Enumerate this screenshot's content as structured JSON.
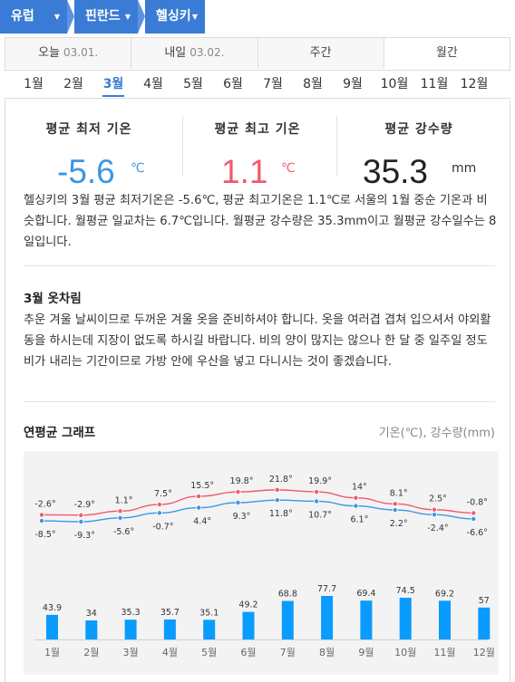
{
  "breadcrumb": [
    {
      "label": "유럽"
    },
    {
      "label": "핀란드"
    },
    {
      "label": "헬싱키"
    }
  ],
  "day_tabs": [
    {
      "label": "오늘",
      "date": "03.01."
    },
    {
      "label": "내일",
      "date": "03.02."
    },
    {
      "label": "주간",
      "date": ""
    },
    {
      "label": "월간",
      "date": ""
    }
  ],
  "months": [
    "1월",
    "2월",
    "3월",
    "4월",
    "5월",
    "6월",
    "7월",
    "8월",
    "9월",
    "10월",
    "11월",
    "12월"
  ],
  "active_month": "3월",
  "summary": {
    "min_label": "평균 최저 기온",
    "min_value": "-5.6",
    "min_unit": "℃",
    "max_label": "평균 최고 기온",
    "max_value": "1.1",
    "max_unit": "℃",
    "rain_label": "평균 강수량",
    "rain_value": "35.3",
    "rain_unit": "mm"
  },
  "description": "헬싱키의 3월 평균 최저기온은 -5.6℃, 평균 최고기온은 1.1℃로 서울의 1월 중순 기온과 비슷합니다. 월평균 일교차는 6.7℃입니다. 월평균 강수량은 35.3mm이고 월평균 강수일수는 8일입니다.",
  "clothing": {
    "title": "3월 옷차림",
    "text": "추운 겨울 날씨이므로 두꺼운 겨울 옷을 준비하셔야 합니다. 옷을 여러겹 겹쳐 입으셔서 야외활동을 하시는데 지장이 없도록 하시길 바랍니다. 비의 양이 많지는 않으나 한 달 중 일주일 정도 비가 내리는 기간이므로 가방 안에 우산을 넣고 다니시는 것이 좋겠습니다."
  },
  "graph": {
    "title": "연평균 그래프",
    "unit_label": "기온(℃), 강수량(mm)"
  },
  "colors": {
    "accent": "#3a7bd5",
    "min_temp": "#3c96e6",
    "max_temp": "#f05a6e",
    "bar": "#0a9bff"
  },
  "chart_data": {
    "type": "line+bar",
    "categories": [
      "1월",
      "2월",
      "3월",
      "4월",
      "5월",
      "6월",
      "7월",
      "8월",
      "9월",
      "10월",
      "11월",
      "12월"
    ],
    "series": [
      {
        "name": "",
        "kind": "line",
        "values": [
          -2.6,
          -2.9,
          1.1,
          7.5,
          15.5,
          19.8,
          21.8,
          19.9,
          14,
          8.1,
          2.5,
          -0.8
        ],
        "labels": [
          "-2.6°",
          "-2.9°",
          "1.1°",
          "7.5°",
          "15.5°",
          "19.8°",
          "21.8°",
          "19.9°",
          "14°",
          "8.1°",
          "2.5°",
          "-0.8°"
        ]
      },
      {
        "name": "",
        "kind": "line",
        "values": [
          -8.5,
          -9.3,
          -5.6,
          -0.7,
          4.4,
          9.3,
          11.8,
          10.7,
          6.1,
          2.2,
          -2.4,
          -6.6
        ],
        "labels": [
          "-8.5°",
          "-9.3°",
          "-5.6°",
          "-0.7°",
          "4.4°",
          "9.3°",
          "11.8°",
          "10.7°",
          "6.1°",
          "2.2°",
          "-2.4°",
          "-6.6°"
        ]
      },
      {
        "name": "",
        "kind": "bar",
        "values": [
          43.9,
          34,
          35.3,
          35.7,
          35.1,
          49.2,
          68.8,
          77.7,
          69.4,
          74.5,
          69.2,
          57
        ],
        "labels": [
          "43.9",
          "34",
          "35.3",
          "35.7",
          "35.1",
          "49.2",
          "68.8",
          "77.7",
          "69.4",
          "74.5",
          "69.2",
          "57"
        ]
      }
    ]
  }
}
